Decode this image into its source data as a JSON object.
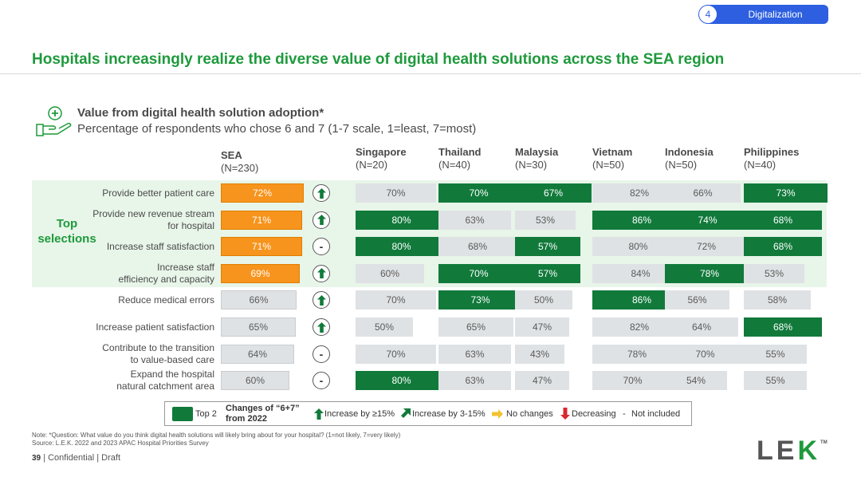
{
  "section": {
    "number": "4",
    "label": "Digitalization"
  },
  "title": "Hospitals increasingly realize the diverse value of digital health solutions across the SEA region",
  "subtitle": {
    "heading": "Value from digital health solution adoption*",
    "description": "Percentage of respondents who chose 6 and 7 (1-7 scale, 1=least, 7=most)"
  },
  "top_selections_label": "Top selections",
  "chart_data": {
    "type": "bar",
    "title": "Value from digital health solution adoption*",
    "subtitle": "Percentage of respondents who chose 6 and 7 (1-7 scale, 1=least, 7=most)",
    "unit": "%",
    "categories": [
      "Provide better patient care",
      "Provide new revenue stream for hospital",
      "Increase staff satisfaction",
      "Increase staff efficiency and capacity",
      "Reduce medical errors",
      "Increase patient satisfaction",
      "Contribute to the transition to value-based care",
      "Expand the hospital natural catchment area"
    ],
    "category_lines": [
      [
        "Provide better patient care"
      ],
      [
        "Provide new revenue stream",
        "for hospital"
      ],
      [
        "Increase staff satisfaction"
      ],
      [
        "Increase staff",
        "efficiency and capacity"
      ],
      [
        "Reduce medical errors"
      ],
      [
        "Increase patient satisfaction"
      ],
      [
        "Contribute to the transition",
        "to value-based care"
      ],
      [
        "Expand the hospital",
        "natural catchment area"
      ]
    ],
    "top_selection_count": 4,
    "changes_vs_2022": [
      "up",
      "up",
      "none",
      "up",
      "up",
      "up",
      "none",
      "none"
    ],
    "series": [
      {
        "name": "SEA",
        "n": "(N=230)",
        "values": [
          72,
          71,
          71,
          69,
          66,
          65,
          64,
          60
        ],
        "labels": [
          "72%",
          "71%",
          "71%",
          "69%",
          "66%",
          "65%",
          "64%",
          "60%"
        ],
        "top2": [
          false,
          false,
          false,
          false,
          false,
          false,
          false,
          false
        ]
      },
      {
        "name": "Singapore",
        "n": "(N=20)",
        "values": [
          70,
          80,
          80,
          60,
          70,
          50,
          70,
          80
        ],
        "labels": [
          "70%",
          "80%",
          "80%",
          "60%",
          "70%",
          "50%",
          "70%",
          "80%"
        ],
        "top2": [
          false,
          true,
          true,
          false,
          false,
          false,
          false,
          true
        ]
      },
      {
        "name": "Thailand",
        "n": "(N=40)",
        "values": [
          70,
          63,
          68,
          70,
          73,
          65,
          63,
          63
        ],
        "labels": [
          "70%",
          "63%",
          "68%",
          "70%",
          "73%",
          "65%",
          "63%",
          "63%"
        ],
        "top2": [
          true,
          false,
          false,
          true,
          true,
          false,
          false,
          false
        ]
      },
      {
        "name": "Malaysia",
        "n": "(N=30)",
        "values": [
          67,
          53,
          57,
          57,
          50,
          47,
          43,
          47
        ],
        "labels": [
          "67%",
          "53%",
          "57%",
          "57%",
          "50%",
          "47%",
          "43%",
          "47%"
        ],
        "top2": [
          true,
          false,
          true,
          true,
          false,
          false,
          false,
          false
        ]
      },
      {
        "name": "Vietnam",
        "n": "(N=50)",
        "values": [
          82,
          86,
          80,
          84,
          86,
          82,
          78,
          70
        ],
        "labels": [
          "82%",
          "86%",
          "80%",
          "84%",
          "86%",
          "82%",
          "78%",
          "70%"
        ],
        "top2": [
          false,
          true,
          false,
          false,
          true,
          false,
          false,
          false
        ]
      },
      {
        "name": "Indonesia",
        "n": "(N=50)",
        "values": [
          66,
          74,
          72,
          78,
          56,
          64,
          70,
          54
        ],
        "labels": [
          "66%",
          "74%",
          "72%",
          "78%",
          "56%",
          "64%",
          "70%",
          "54%"
        ],
        "top2": [
          false,
          true,
          false,
          true,
          false,
          false,
          false,
          false
        ]
      },
      {
        "name": "Philippines",
        "n": "(N=40)",
        "values": [
          73,
          68,
          68,
          53,
          58,
          68,
          55,
          55
        ],
        "labels": [
          "73%",
          "68%",
          "68%",
          "53%",
          "58%",
          "68%",
          "55%",
          "55%"
        ],
        "top2": [
          true,
          true,
          true,
          false,
          false,
          true,
          false,
          false
        ]
      }
    ]
  },
  "legend": {
    "top2": "Top 2",
    "changes": "Changes of “6+7” from 2022",
    "increase_15": "Increase by ≥15%",
    "increase_3_15": "Increase by 3-15%",
    "no_changes": "No changes",
    "decreasing": "Decreasing",
    "not_included_symbol": "-",
    "not_included": "Not included"
  },
  "colors": {
    "green": "#1e9a3c",
    "top2": "#117a3b",
    "orange": "#f7941d",
    "grey_bar": "#dfe2e4",
    "blue": "#2d5fe0",
    "band": "#e8f5e9"
  },
  "note": "Note:     *Question: What value do you think digital health solutions will likely bring about for your hospital? (1=not likely, 7=very likely)",
  "source": "Source:  L.E.K. 2022 and 2023 APAC Hospital Priorities Survey",
  "footer": {
    "page": "39",
    "text": "| Confidential | Draft"
  },
  "logo": {
    "l": "L",
    "e": "E",
    "k": "K",
    "tm": "TM"
  }
}
